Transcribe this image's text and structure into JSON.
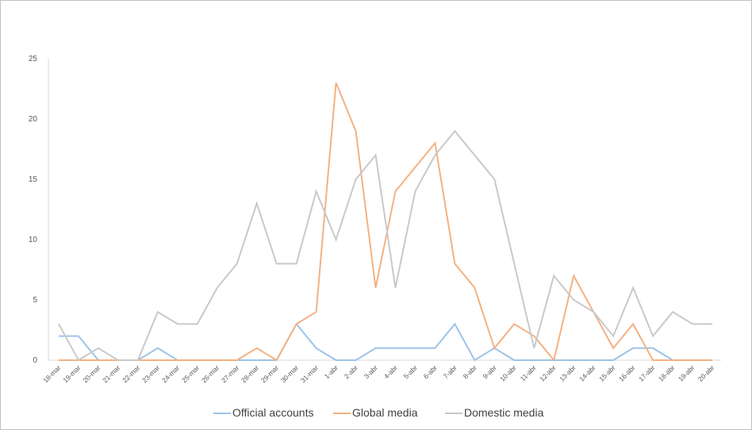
{
  "chart_data": {
    "type": "line",
    "title": "",
    "xlabel": "",
    "ylabel": "",
    "ylim": [
      0,
      25
    ],
    "yticks": [
      0,
      5,
      10,
      15,
      20,
      25
    ],
    "grid": false,
    "legend_position": "bottom",
    "categories": [
      "18-mar",
      "19-mar",
      "20-mar",
      "21-mar",
      "22-mar",
      "23-mar",
      "24-mar",
      "25-mar",
      "26-mar",
      "27-mar",
      "28-mar",
      "29-mar",
      "30-mar",
      "31-mar",
      "1-abr",
      "2-abr",
      "3-abr",
      "4-abr",
      "5-abr",
      "6-abr",
      "7-abr",
      "8-abr",
      "9-abr",
      "10-abr",
      "11-abr",
      "12-abr",
      "13-abr",
      "14-abr",
      "15-abr",
      "16-abr",
      "17-abr",
      "18-abr",
      "19-abr",
      "20-abr"
    ],
    "series": [
      {
        "name": "Official accounts",
        "color": "#9dc3e6",
        "values": [
          2,
          2,
          0,
          0,
          0,
          1,
          0,
          0,
          0,
          0,
          0,
          0,
          3,
          1,
          0,
          0,
          1,
          1,
          1,
          1,
          3,
          0,
          1,
          0,
          0,
          0,
          0,
          0,
          0,
          1,
          1,
          0,
          0,
          0
        ]
      },
      {
        "name": "Global media",
        "color": "#f4b183",
        "values": [
          0,
          0,
          0,
          0,
          0,
          0,
          0,
          0,
          0,
          0,
          1,
          0,
          3,
          4,
          23,
          19,
          6,
          14,
          16,
          18,
          8,
          6,
          1,
          3,
          2,
          0,
          7,
          4,
          1,
          3,
          0,
          0,
          0,
          0
        ]
      },
      {
        "name": "Domestic media",
        "color": "#c9c9c9",
        "values": [
          3,
          0,
          1,
          0,
          0,
          4,
          3,
          3,
          6,
          8,
          13,
          8,
          8,
          14,
          10,
          15,
          17,
          6,
          14,
          17,
          19,
          17,
          15,
          8,
          1,
          7,
          5,
          4,
          2,
          6,
          2,
          4,
          3,
          3
        ]
      }
    ]
  }
}
